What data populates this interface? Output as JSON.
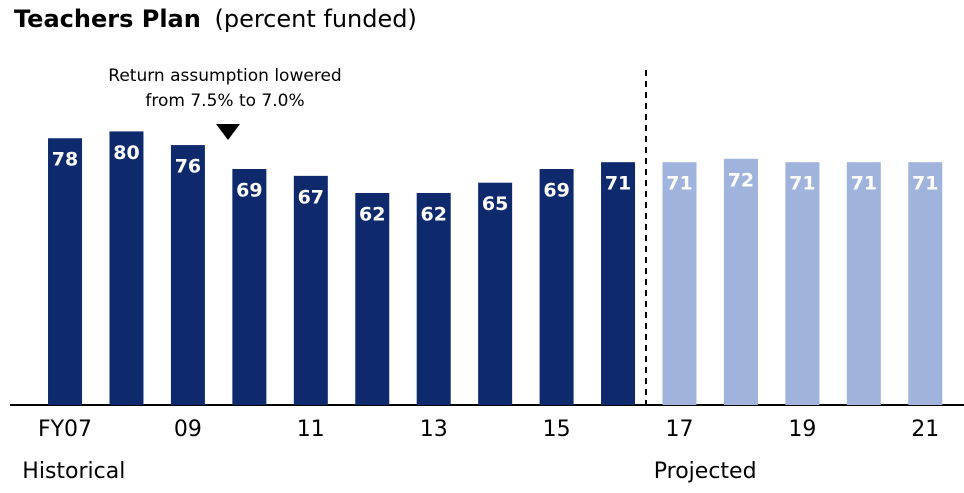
{
  "chart_data": {
    "type": "bar",
    "title": "Teachers Plan",
    "subtitle": "(percent funded)",
    "annotation": [
      "Return assumption lowered",
      "from 7.5% to 7.0%"
    ],
    "categories": [
      "FY07",
      null,
      "09",
      null,
      "11",
      null,
      "13",
      null,
      "15",
      null,
      "17",
      null,
      "19",
      null,
      "21"
    ],
    "series": [
      {
        "name": "Historical",
        "color": "#0e2a6c",
        "values": [
          78,
          80,
          76,
          69,
          67,
          62,
          62,
          65,
          69,
          71,
          null,
          null,
          null,
          null,
          null
        ]
      },
      {
        "name": "Projected",
        "color": "#9fb3dd",
        "values": [
          null,
          null,
          null,
          null,
          null,
          null,
          null,
          null,
          null,
          null,
          71,
          72,
          71,
          71,
          71
        ]
      }
    ],
    "ylim": [
      0,
      100
    ]
  }
}
